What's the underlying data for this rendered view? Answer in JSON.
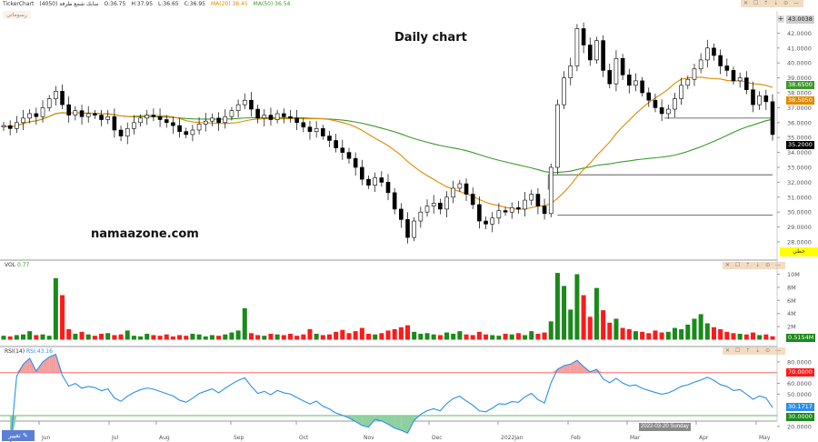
{
  "header": {
    "app": "TickerChart",
    "symbol": "سابك شمع طرفة (4050)",
    "open": "O:36.75",
    "high": "H:37.95",
    "low": "L:36.65",
    "close": "C:36.95",
    "ma20": "MA(20) 38.45",
    "ma50": "MA(50) 36.54"
  },
  "draw_button": "رسوماتي",
  "pane_toolbar": "✕ ☐ ⇡ ⇣ ⊙ —",
  "title": "Daily chart",
  "watermark": "namaazone.com",
  "edit_button": "تغيير",
  "crosshair_date": "2022-03-20 Sunday",
  "yellow_label": "خطي",
  "volume_pane": {
    "label": "VOL",
    "value": "0.77",
    "last": "0.5154M",
    "ticks": [
      "10M",
      "8M",
      "6M",
      "4M",
      "2M"
    ]
  },
  "rsi_pane": {
    "label": "RSI(14)",
    "value": "RSI:43.16",
    "ticks": [
      "80.0000",
      "60.0000",
      "50.0000",
      "20.0000"
    ],
    "overbought": "70.0000",
    "oversold": "30.0000",
    "last": "30.1717"
  },
  "price_labels": {
    "top": "43.0038",
    "ma50": "38.6500",
    "ma20": "38.5050",
    "last": "35.2000"
  },
  "colors": {
    "up": "#1a8a1a",
    "down": "#ff1a1a",
    "ma20": "#e08a00",
    "ma50": "#3a9a2a",
    "rsi": "#2a90e8"
  },
  "chart_data": {
    "type": "candlestick",
    "title": "Daily chart",
    "ylim": [
      27.5,
      43.3
    ],
    "yticks": [
      "42.0000",
      "41.0000",
      "40.0000",
      "39.0000",
      "38.0000",
      "37.0000",
      "36.0000",
      "35.0000",
      "34.0000",
      "33.0000",
      "32.0000",
      "31.0000",
      "30.0000",
      "29.0000",
      "28.0000"
    ],
    "xticks": [
      "Jun",
      "Jul",
      "Aug",
      "Sep",
      "Oct",
      "Nov",
      "Dec",
      "2022Jan",
      "Feb",
      "Mar",
      "Apr",
      "May"
    ],
    "closes": [
      35.8,
      35.6,
      36.0,
      36.3,
      36.6,
      36.4,
      37.0,
      37.6,
      38.1,
      37.2,
      36.5,
      36.8,
      36.4,
      36.6,
      36.5,
      36.2,
      36.4,
      35.5,
      35.1,
      35.6,
      36.0,
      36.3,
      36.5,
      36.4,
      36.2,
      36.0,
      35.8,
      35.4,
      35.2,
      35.5,
      35.9,
      36.1,
      36.3,
      36.0,
      36.4,
      36.8,
      37.2,
      37.5,
      36.9,
      36.3,
      36.5,
      36.2,
      36.6,
      36.4,
      36.3,
      36.0,
      35.7,
      35.4,
      35.6,
      35.1,
      34.8,
      34.3,
      34.0,
      33.6,
      33.0,
      32.2,
      31.8,
      32.3,
      32.0,
      31.3,
      30.2,
      29.5,
      28.3,
      29.4,
      30.0,
      30.4,
      30.6,
      30.2,
      31.0,
      31.6,
      31.9,
      31.2,
      30.5,
      29.4,
      29.2,
      29.6,
      30.1,
      30.0,
      30.3,
      30.2,
      30.8,
      31.2,
      30.4,
      29.9,
      33.0,
      37.2,
      39.0,
      39.8,
      42.3,
      41.2,
      40.2,
      41.5,
      39.5,
      38.6,
      40.3,
      39.2,
      38.5,
      38.8,
      38.0,
      37.5,
      37.0,
      36.6,
      36.9,
      37.6,
      38.5,
      38.9,
      39.6,
      40.2,
      41.0,
      40.5,
      39.8,
      39.5,
      38.8,
      39.0,
      38.2,
      37.2,
      37.8,
      37.4,
      35.2
    ],
    "volume_millions": [
      0.6,
      0.5,
      0.7,
      0.8,
      1.3,
      0.7,
      0.8,
      0.6,
      9.4,
      6.8,
      1.6,
      0.9,
      1.2,
      0.8,
      0.6,
      0.9,
      1.0,
      0.7,
      0.8,
      1.4,
      0.6,
      0.5,
      0.9,
      0.7,
      0.6,
      0.8,
      0.5,
      0.7,
      0.6,
      0.9,
      0.8,
      0.5,
      0.7,
      0.6,
      0.8,
      1.1,
      1.4,
      4.8,
      1.0,
      0.7,
      0.6,
      0.9,
      0.8,
      0.7,
      0.9,
      0.6,
      0.8,
      1.6,
      0.9,
      0.7,
      0.8,
      1.2,
      1.5,
      1.0,
      1.3,
      1.8,
      0.9,
      0.8,
      1.0,
      1.4,
      1.6,
      1.9,
      2.2,
      1.2,
      0.9,
      1.0,
      0.8,
      0.7,
      1.1,
      0.9,
      1.3,
      0.8,
      0.7,
      1.2,
      0.8,
      0.7,
      0.6,
      0.9,
      0.8,
      1.0,
      0.7,
      1.3,
      0.9,
      1.1,
      2.8,
      10.2,
      8.2,
      4.6,
      10.0,
      6.8,
      3.5,
      7.9,
      4.5,
      2.6,
      3.2,
      1.8,
      1.6,
      1.3,
      1.2,
      1.0,
      1.4,
      1.1,
      1.2,
      1.8,
      1.6,
      2.3,
      3.2,
      3.9,
      2.5,
      1.9,
      1.6,
      1.2,
      1.0,
      0.9,
      0.8,
      1.1,
      0.7,
      0.8,
      0.5154
    ],
    "levels": [
      36.3,
      32.5,
      29.8
    ],
    "ma_periods": [
      20,
      50
    ],
    "rsi_period": 14,
    "rsi_bands": [
      70,
      30
    ]
  }
}
